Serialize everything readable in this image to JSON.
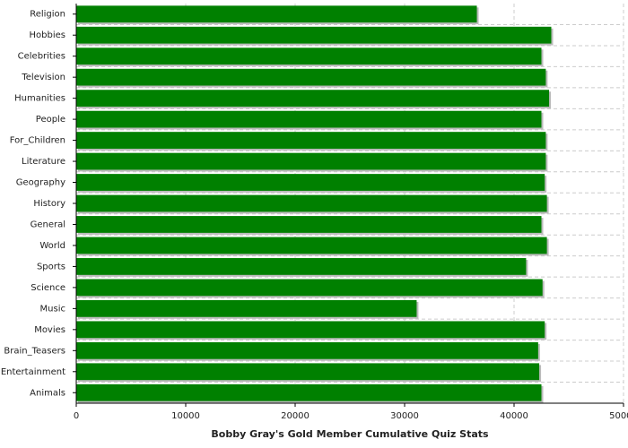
{
  "chart_data": {
    "type": "bar",
    "orientation": "horizontal",
    "title": "Bobby Gray's Gold Member Cumulative Quiz Stats",
    "categories": [
      "Religion",
      "Hobbies",
      "Celebrities",
      "Television",
      "Humanities",
      "People",
      "For_Children",
      "Literature",
      "Geography",
      "History",
      "General",
      "World",
      "Sports",
      "Science",
      "Music",
      "Movies",
      "Brain_Teasers",
      "Entertainment",
      "Animals"
    ],
    "values": [
      36600,
      43400,
      42500,
      42900,
      43200,
      42500,
      42900,
      42900,
      42800,
      43000,
      42500,
      43000,
      41100,
      42600,
      31100,
      42800,
      42200,
      42300,
      42500
    ],
    "color": "#008000",
    "xlim": [
      0,
      50000
    ],
    "xticks": [
      0,
      10000,
      20000,
      30000,
      40000,
      50000
    ],
    "grid": true
  }
}
